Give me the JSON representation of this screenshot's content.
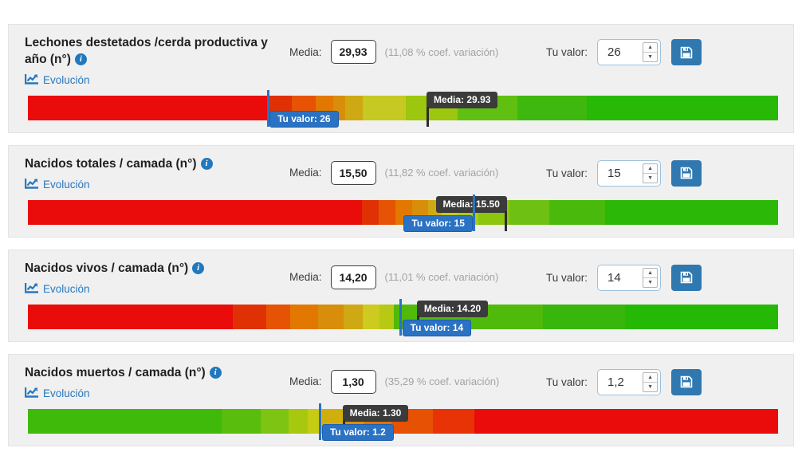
{
  "labels": {
    "media": "Media:",
    "your_value": "Tu valor:"
  },
  "icons": {
    "info_glyph": "i",
    "stepper_up": "▲",
    "stepper_down": "▼"
  },
  "colors": {
    "card_background": "#f0f0f0",
    "link_blue": "#2878be",
    "save_button_blue": "#2f78b0",
    "value_tooltip_blue": "#2a72c4",
    "media_tooltip_dark": "#3b3b3b",
    "bar_red": "#ea0b0b",
    "bar_green": "#27b906"
  },
  "rows": [
    {
      "title": "Lechones destetados /cerda productiva y año (n°)",
      "evolution": "Evolución",
      "media_value": "29,93",
      "coef": "(11,08 % coef. variación)",
      "your_value": "26",
      "bar": {
        "media_marker": {
          "label": "Media: 29.93",
          "pct": 53.3,
          "side": "right"
        },
        "value_marker": {
          "label": "Tu valor: 26",
          "pct": 32.0,
          "side": "right"
        },
        "segments": [
          {
            "w": 32.0,
            "color": "#ea0b0b"
          },
          {
            "w": 3.2,
            "color": "#e03104"
          },
          {
            "w": 3.2,
            "color": "#e65304"
          },
          {
            "w": 2.3,
            "color": "#e27800"
          },
          {
            "w": 1.6,
            "color": "#d88e0a"
          },
          {
            "w": 2.3,
            "color": "#cfa913"
          },
          {
            "w": 5.8,
            "color": "#c6c922"
          },
          {
            "w": 6.9,
            "color": "#9cc70e"
          },
          {
            "w": 8.0,
            "color": "#60c011"
          },
          {
            "w": 9.2,
            "color": "#3eb70e"
          },
          {
            "w": 25.5,
            "color": "#27b906"
          }
        ]
      }
    },
    {
      "title": "Nacidos totales / camada (n°)",
      "evolution": "Evolución",
      "media_value": "15,50",
      "coef": "(11,82 % coef. variación)",
      "your_value": "15",
      "bar": {
        "media_marker": {
          "label": "Media: 15.50",
          "pct": 63.7,
          "side": "left"
        },
        "value_marker": {
          "label": "Tu valor: 15",
          "pct": 59.5,
          "side": "left"
        },
        "segments": [
          {
            "w": 44.5,
            "color": "#ea0b0b"
          },
          {
            "w": 2.3,
            "color": "#e03104"
          },
          {
            "w": 2.2,
            "color": "#e65304"
          },
          {
            "w": 2.2,
            "color": "#e27800"
          },
          {
            "w": 2.1,
            "color": "#d88e0a"
          },
          {
            "w": 1.9,
            "color": "#cfa913"
          },
          {
            "w": 2.1,
            "color": "#c6c922"
          },
          {
            "w": 2.7,
            "color": "#adc918"
          },
          {
            "w": 4.2,
            "color": "#8cc60d"
          },
          {
            "w": 5.3,
            "color": "#6ec112"
          },
          {
            "w": 7.5,
            "color": "#49ba0b"
          },
          {
            "w": 23.0,
            "color": "#2cb807"
          }
        ]
      }
    },
    {
      "title": "Nacidos vivos / camada (n°)",
      "evolution": "Evolución",
      "media_value": "14,20",
      "coef": "(11,01 % coef. variación)",
      "your_value": "14",
      "bar": {
        "media_marker": {
          "label": "Media: 14.20",
          "pct": 52.0,
          "side": "right"
        },
        "value_marker": {
          "label": "Tu valor: 14",
          "pct": 49.7,
          "side": "right"
        },
        "segments": [
          {
            "w": 27.3,
            "color": "#ea0b0b"
          },
          {
            "w": 4.5,
            "color": "#e03104"
          },
          {
            "w": 3.2,
            "color": "#e65304"
          },
          {
            "w": 3.7,
            "color": "#e27800"
          },
          {
            "w": 3.4,
            "color": "#d88e0a"
          },
          {
            "w": 2.5,
            "color": "#cfa913"
          },
          {
            "w": 2.3,
            "color": "#cdcb20"
          },
          {
            "w": 1.9,
            "color": "#b8c913"
          },
          {
            "w": 19.9,
            "color": "#50ba0b"
          },
          {
            "w": 10.9,
            "color": "#38b60c"
          },
          {
            "w": 20.4,
            "color": "#25b906"
          }
        ]
      }
    },
    {
      "title": "Nacidos muertos / camada (n°)",
      "evolution": "Evolución",
      "media_value": "1,30",
      "coef": "(35,29 % coef. variación)",
      "your_value": "1,2",
      "bar": {
        "media_marker": {
          "label": "Media: 1.30",
          "pct": 42.1,
          "side": "right"
        },
        "value_marker": {
          "label": "Tu valor: 1.2",
          "pct": 39.0,
          "side": "right"
        },
        "segments": [
          {
            "w": 25.8,
            "color": "#3fba0a"
          },
          {
            "w": 5.2,
            "color": "#58bd0d"
          },
          {
            "w": 3.8,
            "color": "#7ec412"
          },
          {
            "w": 2.5,
            "color": "#a6c90f"
          },
          {
            "w": 1.9,
            "color": "#c6cc13"
          },
          {
            "w": 2.9,
            "color": "#d2ae0d"
          },
          {
            "w": 2.7,
            "color": "#dc8e05"
          },
          {
            "w": 3.7,
            "color": "#e27201"
          },
          {
            "w": 5.5,
            "color": "#e65103"
          },
          {
            "w": 5.5,
            "color": "#e73306"
          },
          {
            "w": 40.5,
            "color": "#ea0b0b"
          }
        ]
      }
    }
  ]
}
